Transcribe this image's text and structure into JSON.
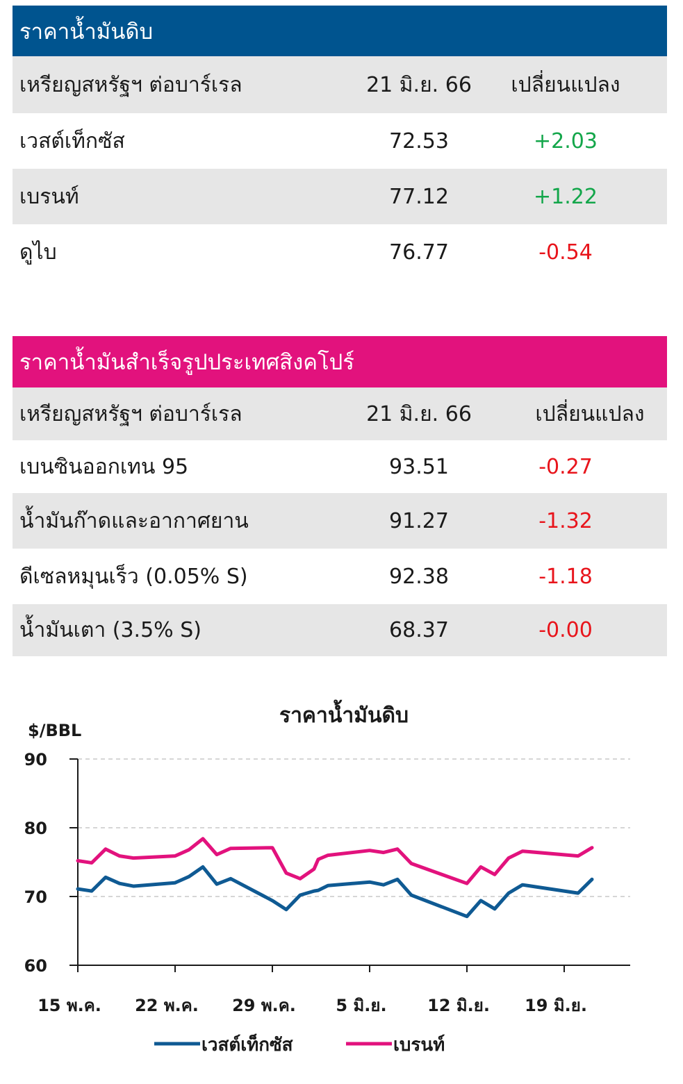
{
  "crude": {
    "title": "ราคาน้ำมันดิบ",
    "header": {
      "col1": "เหรียญสหรัฐฯ ต่อบาร์เรล",
      "col2": "21 มิ.ย. 66",
      "col3": "เปลี่ยนแปลง"
    },
    "rows": [
      {
        "name": "เวสต์เท็กซัส",
        "value": "72.53",
        "change": "+2.03",
        "dir": "up"
      },
      {
        "name": "เบรนท์",
        "value": "77.12",
        "change": "+1.22",
        "dir": "up"
      },
      {
        "name": "ดูไบ",
        "value": "76.77",
        "change": "-0.54",
        "dir": "down"
      }
    ]
  },
  "refined": {
    "title": "ราคาน้ำมันสำเร็จรูปประเทศสิงคโปร์",
    "header": {
      "col1": "เหรียญสหรัฐฯ ต่อบาร์เรล",
      "col2": "21 มิ.ย. 66",
      "col3": "เปลี่ยนแปลง"
    },
    "rows": [
      {
        "name": "เบนซินออกเทน 95",
        "value": "93.51",
        "change": "-0.27",
        "dir": "down"
      },
      {
        "name": "น้ำมันก๊าดและอากาศยาน",
        "value": "91.27",
        "change": "-1.32",
        "dir": "down"
      },
      {
        "name": "ดีเซลหมุนเร็ว (0.05% S)",
        "value": "92.38",
        "change": "-1.18",
        "dir": "down"
      },
      {
        "name": "น้ำมันเตา (3.5% S)",
        "value": "68.37",
        "change": "-0.00",
        "dir": "down"
      }
    ]
  },
  "colors": {
    "crude_header": "#00548f",
    "refined_header": "#e2127d",
    "wti": "#0f5a93",
    "brent": "#e2127d",
    "up": "#13a64a",
    "down": "#e8141b"
  },
  "chart_data": {
    "type": "line",
    "title": "ราคาน้ำมันดิบ",
    "ylabel": "$/BBL",
    "ylim": [
      60,
      90
    ],
    "yticks": [
      60,
      70,
      80,
      90
    ],
    "grid": true,
    "legend": "bottom",
    "xticks": [
      {
        "day": 0,
        "label": "15 พ.ค."
      },
      {
        "day": 7,
        "label": "22 พ.ค."
      },
      {
        "day": 14,
        "label": "29 พ.ค."
      },
      {
        "day": 21,
        "label": "5 มิ.ย."
      },
      {
        "day": 28,
        "label": "12 มิ.ย."
      },
      {
        "day": 35,
        "label": "19 มิ.ย."
      }
    ],
    "x": [
      0,
      1,
      2,
      3,
      4,
      7,
      8,
      9,
      10,
      11,
      14,
      15,
      16,
      17,
      17.3,
      18,
      21,
      22,
      23,
      24,
      28,
      29,
      30,
      31,
      32,
      36,
      37
    ],
    "series": [
      {
        "name": "เวสต์เท็กซัส",
        "values": [
          71.1,
          70.8,
          72.8,
          71.9,
          71.5,
          72.0,
          72.9,
          74.3,
          71.8,
          72.6,
          69.4,
          68.1,
          70.2,
          70.8,
          70.9,
          71.6,
          72.1,
          71.7,
          72.5,
          70.2,
          67.1,
          69.4,
          68.2,
          70.5,
          71.7,
          70.5,
          72.5
        ]
      },
      {
        "name": "เบรนท์",
        "values": [
          75.2,
          74.9,
          76.9,
          75.9,
          75.6,
          75.9,
          76.8,
          78.4,
          76.1,
          77.0,
          77.1,
          73.4,
          72.6,
          74.0,
          75.4,
          76.0,
          76.7,
          76.4,
          76.9,
          74.8,
          71.9,
          74.3,
          73.2,
          75.6,
          76.6,
          75.9,
          77.1
        ]
      }
    ]
  }
}
